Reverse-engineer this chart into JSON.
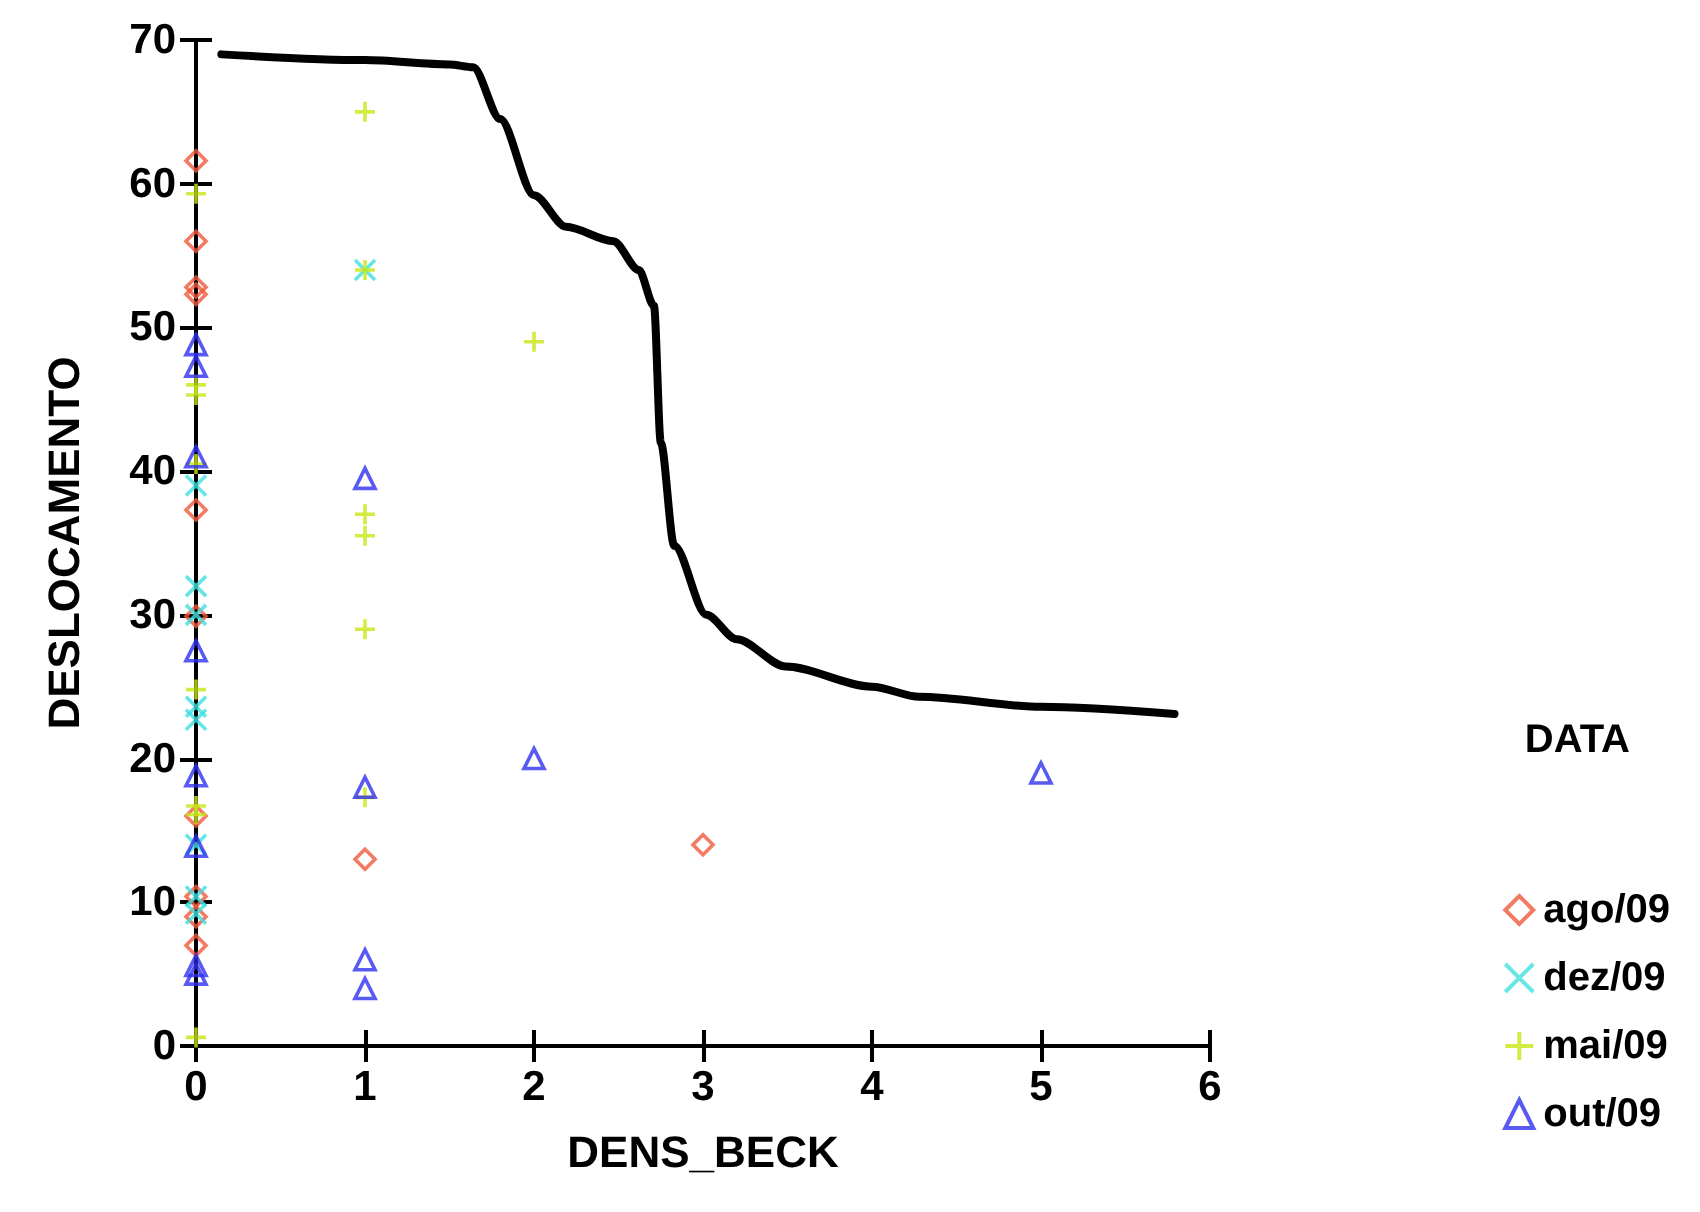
{
  "chart_data": {
    "type": "scatter",
    "xlabel": "DENS_BECK",
    "ylabel": "DESLOCAMENTO",
    "legend_title": "DATA",
    "legend": "right",
    "grid": false,
    "xlim": [
      0,
      6
    ],
    "xticks": [
      0,
      1,
      2,
      3,
      4,
      5,
      6
    ],
    "ylim": [
      0,
      70
    ],
    "yticks": [
      0,
      10,
      20,
      30,
      40,
      50,
      60,
      70
    ],
    "series": [
      {
        "name": "ago/09",
        "color": "#f05a3c",
        "marker": "diamond",
        "x": [
          0,
          0,
          0,
          0,
          0,
          0,
          0,
          0,
          0,
          0,
          1,
          3
        ],
        "values": [
          61.6,
          56,
          52.8,
          52.3,
          37.3,
          29.9,
          16,
          10.4,
          9,
          7,
          13,
          14
        ]
      },
      {
        "name": "dez/09",
        "color": "#40e0e0",
        "marker": "cross",
        "x": [
          0,
          0,
          0,
          0,
          0,
          0,
          0,
          0,
          1
        ],
        "values": [
          39,
          32,
          30,
          23.6,
          22.7,
          14,
          10.4,
          9.2,
          54
        ]
      },
      {
        "name": "mai/09",
        "color": "#c8e614",
        "marker": "plus",
        "x": [
          0,
          0,
          0,
          0,
          0,
          0,
          0,
          0,
          1,
          1,
          1,
          1,
          1,
          1,
          2
        ],
        "values": [
          59.3,
          46,
          45.3,
          40.5,
          24.8,
          16.7,
          16.1,
          0.6,
          65,
          54,
          37,
          35.5,
          29,
          17.3,
          49
        ]
      },
      {
        "name": "out/09",
        "color": "#3030f0",
        "marker": "triangle",
        "x": [
          0,
          0,
          0,
          0,
          0,
          0,
          0,
          0,
          1,
          1,
          1,
          1,
          2,
          5
        ],
        "values": [
          48.8,
          47.3,
          41,
          27.5,
          18.8,
          13.9,
          5.6,
          5,
          39.5,
          18,
          6,
          4,
          20,
          19
        ]
      },
      {
        "type": "line",
        "color": "#000000",
        "marker": "none",
        "line_style": "solid",
        "x": [
          0.15,
          1.0,
          1.5,
          1.64,
          1.8,
          2.0,
          2.19,
          2.47,
          2.62,
          2.71,
          2.75,
          2.83,
          3.02,
          3.2,
          3.49,
          4.0,
          4.28,
          5.0,
          5.79
        ],
        "values": [
          69,
          68.6,
          68.3,
          68.1,
          64.5,
          59.2,
          57,
          56,
          54,
          51.5,
          42,
          34.8,
          30,
          28.3,
          26.4,
          25,
          24.3,
          23.6,
          23.1
        ]
      }
    ]
  }
}
